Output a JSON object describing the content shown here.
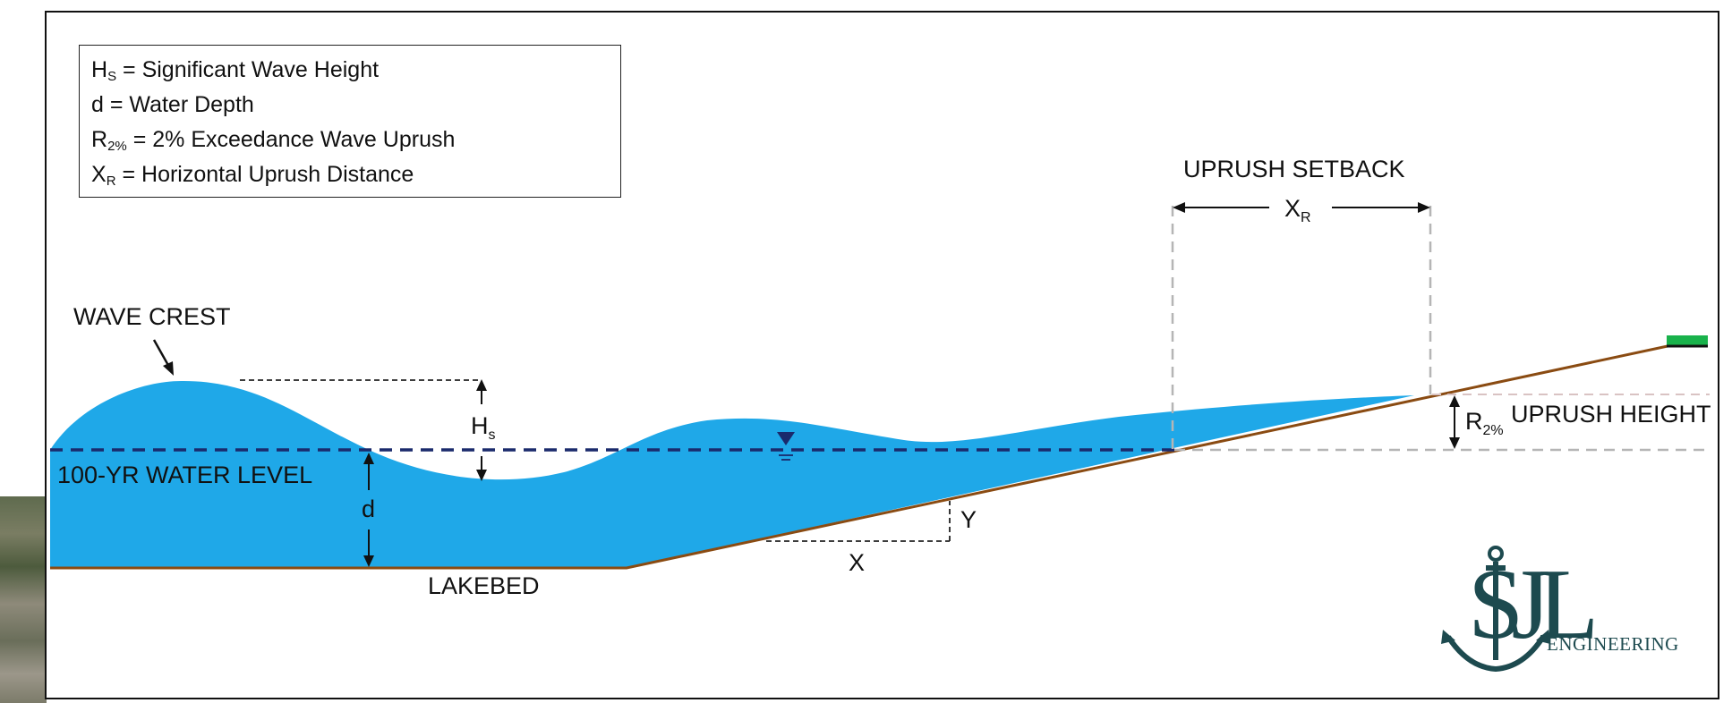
{
  "legend": [
    {
      "sym": "H",
      "sub": "S",
      "desc": " = Significant Wave Height"
    },
    {
      "sym": "d",
      "sub": "",
      "desc": " = Water Depth"
    },
    {
      "sym": "R",
      "sub": "2%",
      "desc": " = 2% Exceedance Wave Uprush"
    },
    {
      "sym": "X",
      "sub": "R",
      "desc": " = Horizontal Uprush Distance"
    }
  ],
  "labels": {
    "uprush_setback": "UPRUSH SETBACK",
    "xr_main": "X",
    "xr_sub": "R",
    "wave_crest": "WAVE CREST",
    "hs_main": "H",
    "hs_sub": "s",
    "water_level": "100-YR WATER LEVEL",
    "d": "d",
    "lakebed": "LAKEBED",
    "x": "X",
    "y": "Y",
    "r2_main": "R",
    "r2_sub": "2%",
    "uprush_height": "UPRUSH HEIGHT"
  },
  "logo": {
    "letters": "SJL",
    "subtitle": "ENGINEERING"
  },
  "colors": {
    "water": "#1fa8e8",
    "water_level_line": "#1a2a6c",
    "lakebed": "#8a4b12",
    "grass": "#19b24b",
    "logo": "#1d4a4f",
    "dashed_guides": "#b5b5b5"
  }
}
